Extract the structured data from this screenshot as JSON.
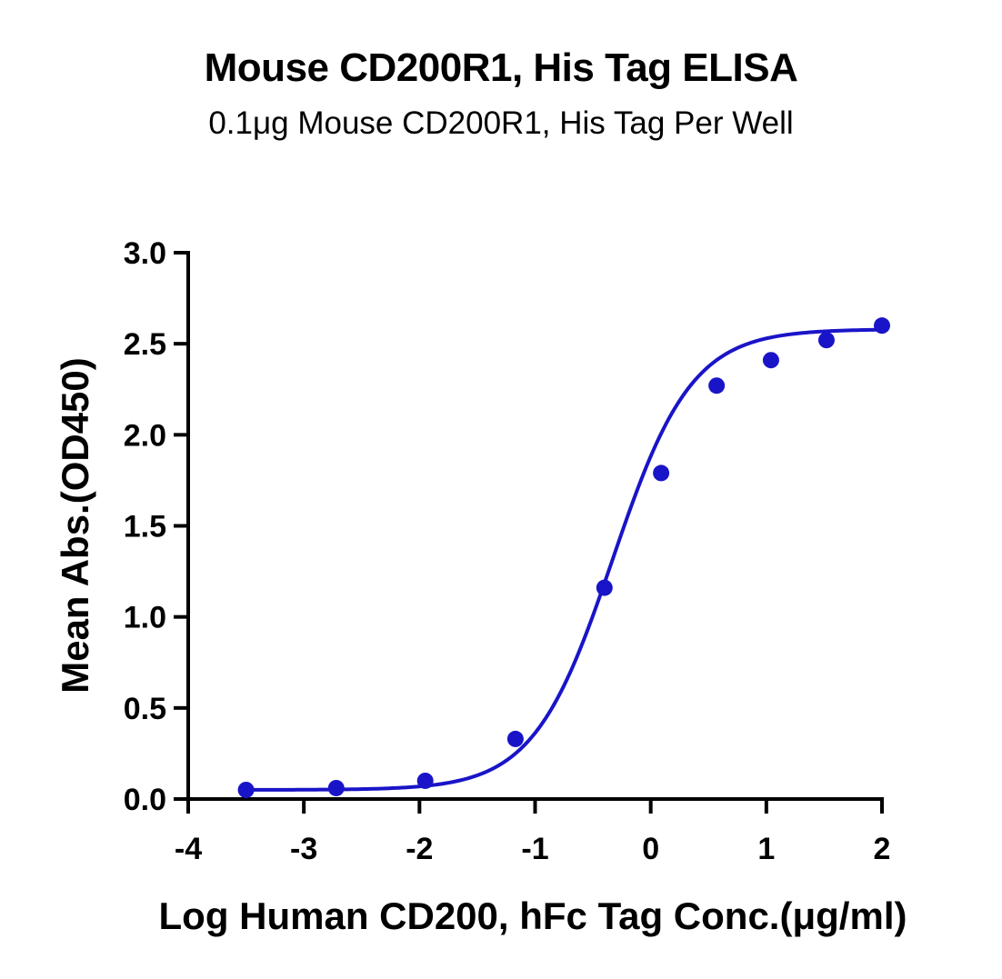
{
  "chart_data": {
    "type": "scatter",
    "title": "Mouse CD200R1, His Tag ELISA",
    "subtitle": "0.1μg Mouse CD200R1, His Tag Per Well",
    "xlabel": "Log Human CD200, hFc Tag Conc.(μg/ml)",
    "ylabel": "Mean Abs.(OD450)",
    "xlim": [
      -4,
      2
    ],
    "ylim": [
      0,
      3.0
    ],
    "x_ticks": [
      -4,
      -3,
      -2,
      -1,
      0,
      1,
      2
    ],
    "x_tick_labels": [
      "-4",
      "-3",
      "-2",
      "-1",
      "0",
      "1",
      "2"
    ],
    "y_ticks": [
      0,
      0.5,
      1.0,
      1.5,
      2.0,
      2.5,
      3.0
    ],
    "y_tick_labels": [
      "0.0",
      "0.5",
      "1.0",
      "1.5",
      "2.0",
      "2.5",
      "3.0"
    ],
    "grid": false,
    "legend": "none",
    "series": [
      {
        "color": "#1a14c8",
        "x": [
          -3.5,
          -2.72,
          -1.95,
          -1.17,
          -0.4,
          0.09,
          0.57,
          1.04,
          1.52,
          2.0
        ],
        "y": [
          0.05,
          0.06,
          0.1,
          0.33,
          1.16,
          1.79,
          2.27,
          2.41,
          2.52,
          2.6
        ],
        "fit": {
          "model": "4PL",
          "bottom": 0.05,
          "top": 2.58,
          "log_ec50": -0.33,
          "hill": 1.27
        }
      }
    ]
  }
}
